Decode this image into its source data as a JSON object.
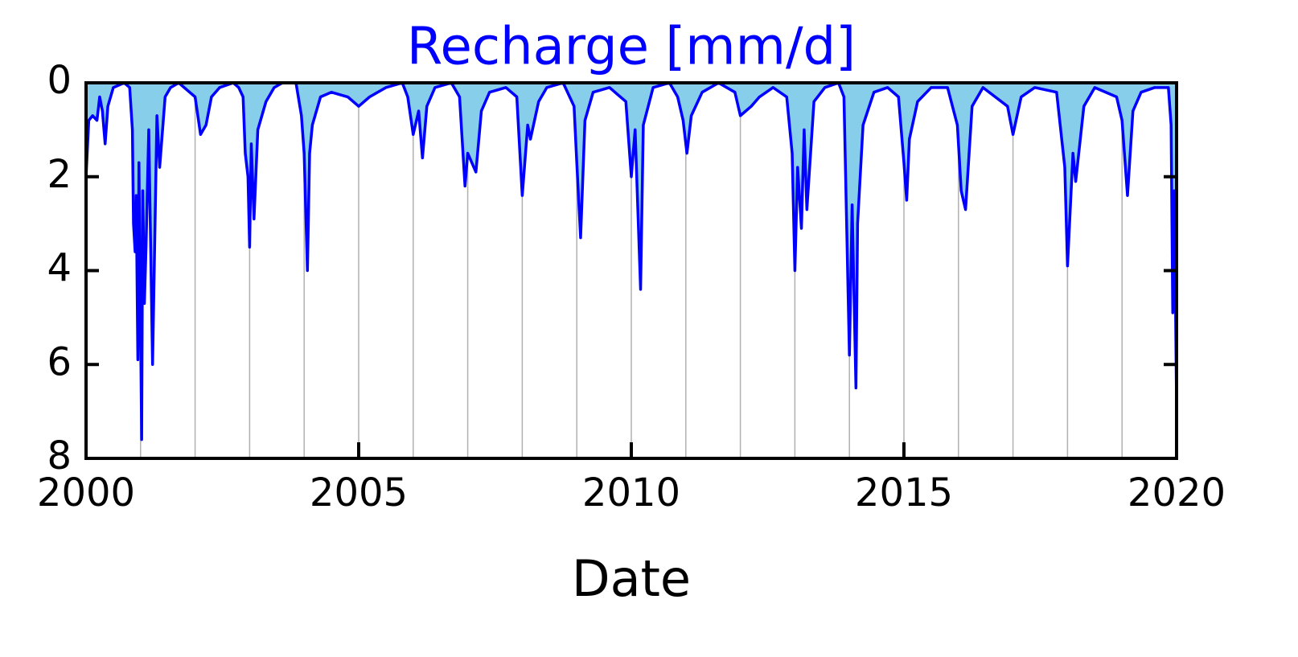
{
  "chart_data": {
    "type": "area",
    "title": "Recharge [mm/d]",
    "xlabel": "Date",
    "title_color": "#0000ff",
    "line_color": "#0000ff",
    "fill_color": "#87ceeb",
    "y_inverted": true,
    "grid": true,
    "xlim": [
      2000,
      2020
    ],
    "xticks": [
      2000,
      2005,
      2010,
      2015,
      2020
    ],
    "xminorticks": [
      2001,
      2002,
      2003,
      2004,
      2006,
      2007,
      2008,
      2009,
      2011,
      2012,
      2013,
      2014,
      2016,
      2017,
      2018,
      2019
    ],
    "ylim": [
      0,
      8
    ],
    "yticks": [
      0,
      2,
      4,
      6,
      8
    ],
    "x": [
      2000.0,
      2000.05,
      2000.12,
      2000.2,
      2000.25,
      2000.3,
      2000.35,
      2000.4,
      2000.5,
      2000.7,
      2000.8,
      2000.85,
      2000.87,
      2000.9,
      2000.92,
      2000.95,
      2000.97,
      2001.02,
      2001.04,
      2001.07,
      2001.1,
      2001.15,
      2001.22,
      2001.3,
      2001.35,
      2001.45,
      2001.55,
      2001.7,
      2001.9,
      2002.0,
      2002.1,
      2002.2,
      2002.3,
      2002.45,
      2002.7,
      2002.8,
      2002.88,
      2002.92,
      2002.97,
      2003.0,
      2003.03,
      2003.08,
      2003.15,
      2003.3,
      2003.45,
      2003.6,
      2003.85,
      2003.95,
      2004.0,
      2004.06,
      2004.1,
      2004.15,
      2004.3,
      2004.5,
      2004.8,
      2005.0,
      2005.2,
      2005.5,
      2005.8,
      2005.9,
      2006.0,
      2006.1,
      2006.17,
      2006.25,
      2006.4,
      2006.7,
      2006.85,
      2006.95,
      2007.0,
      2007.15,
      2007.25,
      2007.4,
      2007.7,
      2007.9,
      2008.0,
      2008.1,
      2008.15,
      2008.3,
      2008.45,
      2008.75,
      2008.95,
      2009.0,
      2009.07,
      2009.15,
      2009.3,
      2009.6,
      2009.9,
      2010.0,
      2010.07,
      2010.17,
      2010.22,
      2010.4,
      2010.7,
      2010.85,
      2010.95,
      2011.02,
      2011.1,
      2011.3,
      2011.6,
      2011.9,
      2012.0,
      2012.2,
      2012.35,
      2012.6,
      2012.85,
      2012.95,
      2013.0,
      2013.05,
      2013.12,
      2013.17,
      2013.22,
      2013.35,
      2013.55,
      2013.8,
      2013.9,
      2014.0,
      2014.05,
      2014.12,
      2014.15,
      2014.25,
      2014.45,
      2014.7,
      2014.9,
      2015.0,
      2015.05,
      2015.1,
      2015.25,
      2015.5,
      2015.8,
      2015.98,
      2016.05,
      2016.13,
      2016.25,
      2016.45,
      2016.9,
      2017.0,
      2017.15,
      2017.4,
      2017.8,
      2017.95,
      2018.0,
      2018.1,
      2018.15,
      2018.3,
      2018.5,
      2018.9,
      2019.0,
      2019.1,
      2019.2,
      2019.35,
      2019.6,
      2019.85,
      2019.9,
      2019.93,
      2019.96,
      2020.0
    ],
    "values": [
      2.0,
      0.8,
      0.7,
      0.8,
      0.3,
      0.6,
      1.3,
      0.5,
      0.1,
      0.0,
      0.1,
      1.0,
      3.0,
      3.6,
      2.4,
      5.9,
      1.7,
      7.6,
      2.3,
      4.7,
      3.5,
      1.0,
      6.0,
      0.7,
      1.8,
      0.3,
      0.1,
      0.0,
      0.2,
      0.3,
      1.1,
      0.9,
      0.3,
      0.1,
      0.0,
      0.1,
      0.3,
      1.5,
      2.0,
      3.5,
      1.3,
      2.9,
      1.0,
      0.4,
      0.1,
      0.0,
      0.0,
      0.7,
      1.5,
      4.0,
      1.5,
      0.9,
      0.3,
      0.2,
      0.3,
      0.5,
      0.3,
      0.1,
      0.0,
      0.3,
      1.1,
      0.6,
      1.6,
      0.5,
      0.1,
      0.0,
      0.3,
      2.2,
      1.5,
      1.9,
      0.6,
      0.2,
      0.1,
      0.3,
      2.4,
      0.9,
      1.2,
      0.4,
      0.1,
      0.0,
      0.5,
      1.7,
      3.3,
      0.8,
      0.2,
      0.1,
      0.4,
      2.0,
      1.0,
      4.4,
      0.9,
      0.1,
      0.0,
      0.3,
      0.8,
      1.5,
      0.7,
      0.2,
      0.0,
      0.2,
      0.7,
      0.5,
      0.3,
      0.1,
      0.3,
      1.5,
      4.0,
      1.8,
      3.1,
      1.0,
      2.7,
      0.4,
      0.1,
      0.0,
      0.3,
      5.8,
      2.6,
      6.5,
      3.0,
      0.9,
      0.2,
      0.1,
      0.3,
      1.7,
      2.5,
      1.2,
      0.4,
      0.1,
      0.1,
      0.9,
      2.3,
      2.7,
      0.5,
      0.1,
      0.5,
      1.1,
      0.3,
      0.1,
      0.2,
      1.8,
      3.9,
      1.5,
      2.1,
      0.5,
      0.1,
      0.3,
      0.8,
      2.4,
      0.6,
      0.2,
      0.1,
      0.1,
      0.9,
      4.9,
      2.3,
      6.9
    ]
  }
}
